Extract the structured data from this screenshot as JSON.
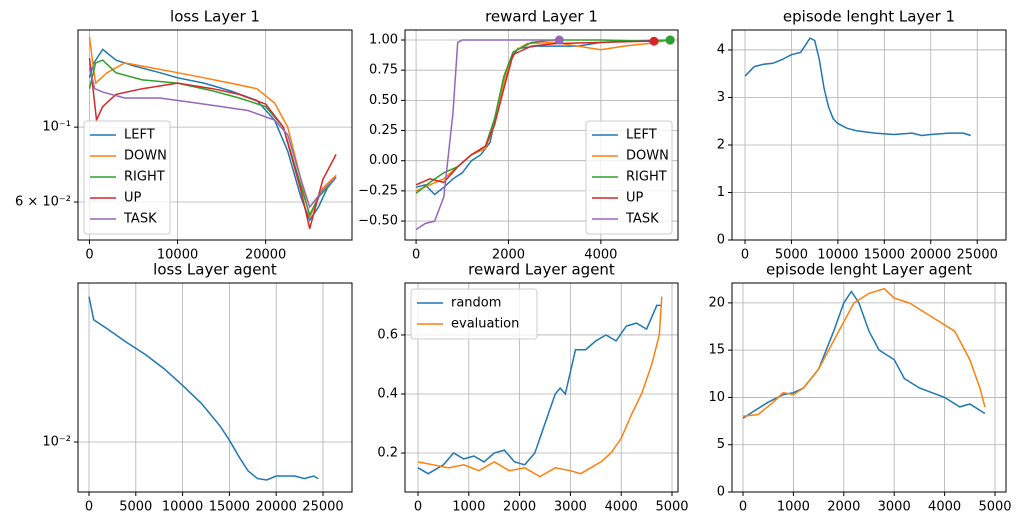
{
  "chart_data": [
    {
      "type": "line",
      "title": "loss Layer 1",
      "log_y": true,
      "grid": true,
      "legend": "lower left",
      "xlim": [
        -1300,
        29800
      ],
      "xticks": [
        0,
        10000,
        20000
      ],
      "ylim": [
        0.0463,
        0.194
      ],
      "yticks": [
        {
          "value": 0.06,
          "label": "6 × 10⁻²"
        },
        {
          "value": 0.1,
          "label": "10⁻¹"
        }
      ],
      "series": [
        {
          "name": "LEFT",
          "color": "#1f77b4",
          "x": [
            0,
            500,
            1500,
            3000,
            5000,
            8000,
            10000,
            13000,
            16000,
            19000,
            21000,
            22500,
            24000,
            25000,
            26000,
            27000,
            28000
          ],
          "values": [
            0.14,
            0.155,
            0.17,
            0.158,
            0.152,
            0.145,
            0.14,
            0.135,
            0.128,
            0.12,
            0.105,
            0.085,
            0.062,
            0.053,
            0.058,
            0.066,
            0.071
          ]
        },
        {
          "name": "DOWN",
          "color": "#ff7f0e",
          "x": [
            0,
            300,
            700,
            2000,
            4000,
            7000,
            10000,
            13000,
            16000,
            19000,
            21000,
            22500,
            24000,
            25000,
            26500,
            28000
          ],
          "values": [
            0.185,
            0.16,
            0.135,
            0.145,
            0.155,
            0.15,
            0.145,
            0.14,
            0.135,
            0.13,
            0.118,
            0.1,
            0.07,
            0.054,
            0.066,
            0.072
          ]
        },
        {
          "name": "RIGHT",
          "color": "#2ca02c",
          "x": [
            0,
            700,
            1500,
            3000,
            6000,
            10000,
            14000,
            17000,
            20000,
            22000,
            24000,
            25000,
            26000,
            28000
          ],
          "values": [
            0.13,
            0.155,
            0.158,
            0.145,
            0.138,
            0.135,
            0.128,
            0.122,
            0.115,
            0.1,
            0.067,
            0.055,
            0.062,
            0.071
          ]
        },
        {
          "name": "UP",
          "color": "#d62728",
          "x": [
            0,
            400,
            800,
            1500,
            3000,
            6000,
            10000,
            14000,
            17000,
            20000,
            22000,
            24000,
            25000,
            26500,
            28000
          ],
          "values": [
            0.16,
            0.13,
            0.105,
            0.115,
            0.125,
            0.13,
            0.135,
            0.13,
            0.125,
            0.117,
            0.1,
            0.065,
            0.05,
            0.07,
            0.083
          ]
        },
        {
          "name": "TASK",
          "color": "#9467bd",
          "x": [
            0,
            600,
            1500,
            4000,
            8000,
            12000,
            15000,
            18000,
            21000,
            22500,
            24000,
            25000,
            26500,
            28000
          ],
          "values": [
            0.15,
            0.13,
            0.127,
            0.122,
            0.122,
            0.118,
            0.115,
            0.112,
            0.105,
            0.095,
            0.07,
            0.058,
            0.065,
            0.071
          ]
        }
      ]
    },
    {
      "type": "line",
      "title": "reward Layer 1",
      "grid": true,
      "legend": "lower right",
      "end_markers": true,
      "xlim": [
        -240,
        5670
      ],
      "xticks": [
        0,
        2000,
        4000
      ],
      "ylim": [
        -0.657,
        1.083
      ],
      "yticks": [
        {
          "value": -0.5,
          "label": "−0.50"
        },
        {
          "value": -0.25,
          "label": "−0.25"
        },
        {
          "value": 0,
          "label": "0.00"
        },
        {
          "value": 0.25,
          "label": "0.25"
        },
        {
          "value": 0.5,
          "label": "0.50"
        },
        {
          "value": 0.75,
          "label": "0.75"
        },
        {
          "value": 1,
          "label": "1.00"
        }
      ],
      "series": [
        {
          "name": "LEFT",
          "color": "#1f77b4",
          "x": [
            0,
            200,
            400,
            600,
            800,
            1000,
            1200,
            1400,
            1600,
            1800,
            2000,
            2200,
            2600,
            3000,
            3500,
            4000,
            4500,
            5500
          ],
          "values": [
            -0.22,
            -0.2,
            -0.28,
            -0.22,
            -0.15,
            -0.1,
            0.0,
            0.05,
            0.15,
            0.5,
            0.8,
            0.93,
            0.95,
            0.95,
            0.95,
            0.98,
            0.99,
            1.0
          ]
        },
        {
          "name": "DOWN",
          "color": "#ff7f0e",
          "x": [
            0,
            300,
            600,
            900,
            1200,
            1500,
            1700,
            1900,
            2100,
            2400,
            3000,
            3500,
            4000,
            4500,
            5000,
            5500
          ],
          "values": [
            -0.25,
            -0.2,
            -0.15,
            -0.05,
            0.05,
            0.1,
            0.3,
            0.65,
            0.9,
            0.97,
            0.98,
            0.95,
            0.92,
            0.95,
            0.97,
            1.0
          ]
        },
        {
          "name": "RIGHT",
          "color": "#2ca02c",
          "x": [
            0,
            300,
            600,
            900,
            1200,
            1500,
            1700,
            1900,
            2100,
            2500,
            3000,
            4000,
            5000,
            5500
          ],
          "values": [
            -0.27,
            -0.18,
            -0.1,
            -0.05,
            0.05,
            0.12,
            0.35,
            0.7,
            0.9,
            0.98,
            1.0,
            1.0,
            0.99,
            1.0
          ]
        },
        {
          "name": "UP",
          "color": "#d62728",
          "x": [
            0,
            300,
            600,
            900,
            1200,
            1500,
            1700,
            1900,
            2100,
            2500,
            3000,
            4000,
            5000,
            5150
          ],
          "values": [
            -0.2,
            -0.15,
            -0.18,
            -0.05,
            0.05,
            0.12,
            0.3,
            0.6,
            0.88,
            0.95,
            0.97,
            0.98,
            0.99,
            0.99
          ]
        },
        {
          "name": "TASK",
          "color": "#9467bd",
          "x": [
            0,
            200,
            400,
            600,
            800,
            900,
            1000,
            2000,
            3000,
            3100
          ],
          "values": [
            -0.57,
            -0.52,
            -0.5,
            -0.3,
            0.4,
            0.98,
            1.0,
            1.0,
            1.0,
            1.0
          ]
        }
      ]
    },
    {
      "type": "line",
      "title": "episode lenght Layer 1",
      "grid": true,
      "xlim": [
        -1400,
        28100
      ],
      "xticks": [
        0,
        5000,
        10000,
        15000,
        20000,
        25000
      ],
      "ylim": [
        0,
        4.42
      ],
      "yticks": [
        0,
        1,
        2,
        3,
        4
      ],
      "series": [
        {
          "color": "#1f77b4",
          "x": [
            0,
            500,
            1000,
            2000,
            3000,
            4000,
            5000,
            6000,
            6500,
            7000,
            7500,
            8000,
            8500,
            9000,
            9500,
            10000,
            11000,
            12000,
            14000,
            16000,
            18000,
            19000,
            20000,
            22000,
            23500,
            24300
          ],
          "values": [
            3.45,
            3.55,
            3.65,
            3.7,
            3.72,
            3.8,
            3.9,
            3.95,
            4.1,
            4.25,
            4.2,
            3.8,
            3.2,
            2.8,
            2.55,
            2.45,
            2.35,
            2.3,
            2.25,
            2.22,
            2.25,
            2.2,
            2.22,
            2.25,
            2.25,
            2.2
          ]
        }
      ]
    },
    {
      "type": "line",
      "title": "loss Layer agent",
      "log_y": true,
      "grid": true,
      "xlim": [
        -1175,
        28100
      ],
      "xticks": [
        0,
        5000,
        10000,
        15000,
        20000,
        25000
      ],
      "ylim": [
        0.00567,
        0.0607
      ],
      "yticks": [
        {
          "value": 0.01,
          "label": "10⁻²"
        }
      ],
      "series": [
        {
          "color": "#1f77b4",
          "x": [
            0,
            500,
            2000,
            4000,
            6000,
            8000,
            10000,
            12000,
            14000,
            15000,
            16000,
            17000,
            18000,
            19000,
            20000,
            22000,
            23000,
            24000,
            24500
          ],
          "values": [
            0.052,
            0.04,
            0.036,
            0.031,
            0.027,
            0.023,
            0.019,
            0.0155,
            0.012,
            0.0102,
            0.0085,
            0.0072,
            0.0066,
            0.0065,
            0.0068,
            0.0068,
            0.0066,
            0.0068,
            0.0066
          ]
        }
      ]
    },
    {
      "type": "line",
      "title": "reward Layer agent",
      "grid": true,
      "legend": "upper left",
      "xlim": [
        -256,
        5118
      ],
      "xticks": [
        0,
        1000,
        2000,
        3000,
        4000,
        5000
      ],
      "ylim": [
        0.068,
        0.776
      ],
      "yticks": [
        0.2,
        0.4,
        0.6
      ],
      "series": [
        {
          "name": "random",
          "color": "#1f77b4",
          "x": [
            0,
            200,
            500,
            700,
            900,
            1100,
            1300,
            1500,
            1700,
            1900,
            2100,
            2300,
            2500,
            2700,
            2800,
            2900,
            3100,
            3300,
            3500,
            3700,
            3900,
            4100,
            4300,
            4500,
            4700,
            4800
          ],
          "values": [
            0.15,
            0.13,
            0.16,
            0.2,
            0.18,
            0.19,
            0.17,
            0.2,
            0.21,
            0.17,
            0.16,
            0.2,
            0.3,
            0.4,
            0.42,
            0.4,
            0.55,
            0.55,
            0.58,
            0.6,
            0.58,
            0.63,
            0.64,
            0.62,
            0.7,
            0.7
          ]
        },
        {
          "name": "evaluation",
          "color": "#ff7f0e",
          "x": [
            0,
            300,
            600,
            900,
            1200,
            1500,
            1800,
            2100,
            2400,
            2700,
            3000,
            3200,
            3400,
            3600,
            3800,
            4000,
            4200,
            4400,
            4600,
            4750,
            4800
          ],
          "values": [
            0.17,
            0.16,
            0.15,
            0.16,
            0.14,
            0.17,
            0.14,
            0.15,
            0.12,
            0.15,
            0.14,
            0.13,
            0.15,
            0.17,
            0.2,
            0.25,
            0.33,
            0.4,
            0.5,
            0.6,
            0.73
          ]
        }
      ]
    },
    {
      "type": "line",
      "title": "episode lenght Layer agent",
      "grid": true,
      "xlim": [
        -218,
        5218
      ],
      "xticks": [
        0,
        1000,
        2000,
        3000,
        4000,
        5000
      ],
      "ylim": [
        0,
        22.1
      ],
      "yticks": [
        0,
        5,
        10,
        15,
        20
      ],
      "series": [
        {
          "color": "#1f77b4",
          "x": [
            0,
            200,
            500,
            800,
            1000,
            1200,
            1500,
            1800,
            2000,
            2150,
            2300,
            2500,
            2700,
            3000,
            3200,
            3500,
            4000,
            4300,
            4500,
            4800
          ],
          "values": [
            7.8,
            8.5,
            9.5,
            10.3,
            10.5,
            11,
            13,
            17,
            20,
            21.2,
            20,
            17,
            15,
            14,
            12,
            11,
            10,
            9,
            9.3,
            8.3
          ]
        },
        {
          "color": "#ff7f0e",
          "x": [
            0,
            300,
            600,
            800,
            1000,
            1200,
            1500,
            1800,
            2000,
            2200,
            2500,
            2800,
            3000,
            3300,
            3600,
            3900,
            4200,
            4500,
            4700,
            4800
          ],
          "values": [
            8,
            8.2,
            9.5,
            10.5,
            10.3,
            11,
            13,
            16,
            18,
            20,
            21,
            21.5,
            20.5,
            20,
            19,
            18,
            17,
            14,
            11,
            9
          ]
        }
      ]
    }
  ]
}
